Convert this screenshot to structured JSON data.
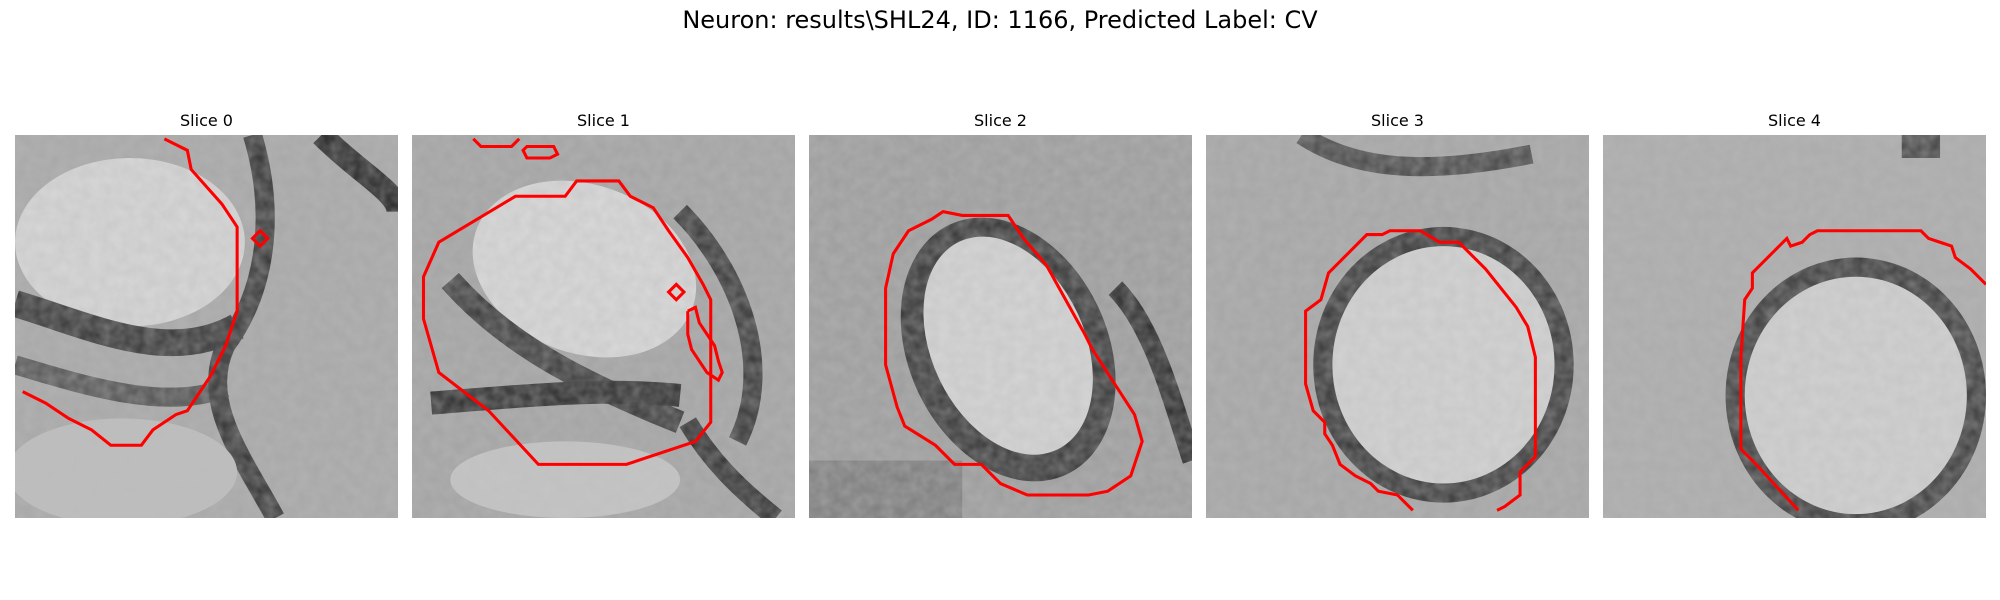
{
  "figure": {
    "title": "Neuron: results\\SHL24, ID: 1166, Predicted Label: CV"
  },
  "panels": [
    {
      "title": "Slice 0"
    },
    {
      "title": "Slice 1"
    },
    {
      "title": "Slice 2"
    },
    {
      "title": "Slice 3"
    },
    {
      "title": "Slice 4"
    }
  ],
  "overlay": {
    "contour_color": "#ff0000"
  }
}
